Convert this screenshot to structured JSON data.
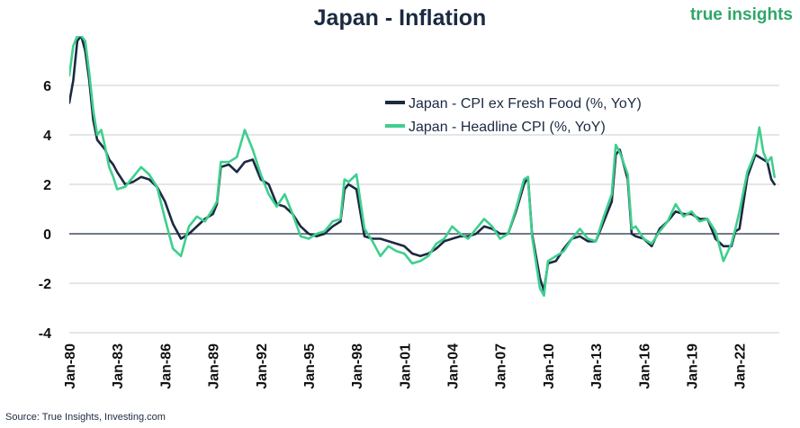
{
  "brand": {
    "name": "true insights",
    "color": "#2fa66a"
  },
  "source": "Source: True Insights, Investing.com",
  "chart_data": {
    "type": "line",
    "title": "Japan - Inflation",
    "xlabel": "",
    "ylabel": "",
    "ylim": [
      -4,
      8
    ],
    "xlim": [
      1980.0,
      2024.5
    ],
    "yticks": [
      -4,
      -2,
      0,
      2,
      4,
      6
    ],
    "xticks": [
      {
        "label": "Jan-80",
        "x": 1980
      },
      {
        "label": "Jan-83",
        "x": 1983
      },
      {
        "label": "Jan-86",
        "x": 1986
      },
      {
        "label": "Jan-89",
        "x": 1989
      },
      {
        "label": "Jan-92",
        "x": 1992
      },
      {
        "label": "Jan-95",
        "x": 1995
      },
      {
        "label": "Jan-98",
        "x": 1998
      },
      {
        "label": "Jan-01",
        "x": 2001
      },
      {
        "label": "Jan-04",
        "x": 2004
      },
      {
        "label": "Jan-07",
        "x": 2007
      },
      {
        "label": "Jan-10",
        "x": 2010
      },
      {
        "label": "Jan-13",
        "x": 2013
      },
      {
        "label": "Jan-16",
        "x": 2016
      },
      {
        "label": "Jan-19",
        "x": 2019
      },
      {
        "label": "Jan-22",
        "x": 2022
      }
    ],
    "grid": true,
    "legend_position": "top-right",
    "series": [
      {
        "name": "Japan - CPI ex Fresh Food (%, YoY)",
        "color": "#1b2a41",
        "x": [
          1980.0,
          1980.25,
          1980.5,
          1980.75,
          1981.0,
          1981.25,
          1981.5,
          1981.75,
          1982.0,
          1982.25,
          1982.5,
          1982.75,
          1983.0,
          1983.5,
          1984.0,
          1984.5,
          1985.0,
          1985.5,
          1986.0,
          1986.5,
          1987.0,
          1987.5,
          1988.0,
          1988.5,
          1989.0,
          1989.25,
          1989.5,
          1990.0,
          1990.5,
          1991.0,
          1991.5,
          1992.0,
          1992.5,
          1993.0,
          1993.5,
          1994.0,
          1994.5,
          1995.0,
          1995.5,
          1996.0,
          1996.5,
          1997.0,
          1997.25,
          1997.5,
          1998.0,
          1998.5,
          1999.0,
          1999.5,
          2000.0,
          2000.5,
          2001.0,
          2001.5,
          2002.0,
          2002.5,
          2003.0,
          2003.5,
          2004.0,
          2004.5,
          2005.0,
          2005.5,
          2006.0,
          2006.5,
          2007.0,
          2007.5,
          2008.0,
          2008.5,
          2008.75,
          2009.0,
          2009.5,
          2009.75,
          2010.0,
          2010.5,
          2011.0,
          2011.5,
          2012.0,
          2012.5,
          2013.0,
          2013.5,
          2014.0,
          2014.25,
          2014.5,
          2015.0,
          2015.25,
          2015.5,
          2016.0,
          2016.5,
          2017.0,
          2017.5,
          2018.0,
          2018.5,
          2019.0,
          2019.5,
          2020.0,
          2020.5,
          2021.0,
          2021.5,
          2021.75,
          2022.0,
          2022.5,
          2023.0,
          2023.25,
          2023.5,
          2023.75,
          2024.0,
          2024.2
        ],
        "values": [
          5.3,
          6.2,
          7.8,
          8.0,
          7.4,
          6.2,
          4.6,
          3.8,
          3.6,
          3.4,
          3.0,
          2.8,
          2.5,
          2.0,
          2.1,
          2.3,
          2.2,
          1.9,
          1.3,
          0.4,
          -0.2,
          0.0,
          0.3,
          0.6,
          0.8,
          1.2,
          2.7,
          2.8,
          2.5,
          2.9,
          3.0,
          2.2,
          2.0,
          1.2,
          1.1,
          0.8,
          0.3,
          0.0,
          -0.1,
          0.0,
          0.3,
          0.5,
          1.8,
          2.0,
          1.8,
          -0.1,
          -0.2,
          -0.2,
          -0.3,
          -0.4,
          -0.5,
          -0.8,
          -0.9,
          -0.8,
          -0.6,
          -0.3,
          -0.2,
          -0.1,
          -0.1,
          0.0,
          0.3,
          0.2,
          0.0,
          0.0,
          0.9,
          2.0,
          2.3,
          0.0,
          -1.8,
          -2.3,
          -1.2,
          -1.1,
          -0.6,
          -0.2,
          -0.1,
          -0.3,
          -0.3,
          0.5,
          1.3,
          3.2,
          3.4,
          2.2,
          0.0,
          -0.1,
          -0.2,
          -0.5,
          0.2,
          0.5,
          0.9,
          0.8,
          0.8,
          0.6,
          0.6,
          -0.2,
          -0.5,
          -0.5,
          0.1,
          0.2,
          2.3,
          3.2,
          3.1,
          3.0,
          2.9,
          2.2,
          2.0
        ]
      },
      {
        "name": "Japan - Headline CPI (%, YoY)",
        "color": "#3ecf8e",
        "x": [
          1980.0,
          1980.25,
          1980.5,
          1980.75,
          1981.0,
          1981.25,
          1981.5,
          1981.75,
          1982.0,
          1982.25,
          1982.5,
          1982.75,
          1983.0,
          1983.5,
          1984.0,
          1984.5,
          1985.0,
          1985.5,
          1986.0,
          1986.5,
          1987.0,
          1987.5,
          1988.0,
          1988.5,
          1989.0,
          1989.25,
          1989.5,
          1990.0,
          1990.5,
          1991.0,
          1991.5,
          1992.0,
          1992.5,
          1993.0,
          1993.5,
          1994.0,
          1994.5,
          1995.0,
          1995.5,
          1996.0,
          1996.5,
          1997.0,
          1997.25,
          1997.5,
          1998.0,
          1998.5,
          1999.0,
          1999.5,
          2000.0,
          2000.5,
          2001.0,
          2001.5,
          2002.0,
          2002.5,
          2003.0,
          2003.5,
          2004.0,
          2004.5,
          2005.0,
          2005.5,
          2006.0,
          2006.5,
          2007.0,
          2007.5,
          2008.0,
          2008.5,
          2008.75,
          2009.0,
          2009.5,
          2009.75,
          2010.0,
          2010.5,
          2011.0,
          2011.5,
          2012.0,
          2012.5,
          2013.0,
          2013.5,
          2014.0,
          2014.25,
          2014.5,
          2015.0,
          2015.25,
          2015.5,
          2016.0,
          2016.5,
          2017.0,
          2017.5,
          2018.0,
          2018.5,
          2019.0,
          2019.5,
          2020.0,
          2020.5,
          2021.0,
          2021.5,
          2021.75,
          2022.0,
          2022.5,
          2023.0,
          2023.25,
          2023.5,
          2023.75,
          2024.0,
          2024.2
        ],
        "values": [
          6.4,
          7.6,
          8.0,
          8.0,
          7.8,
          6.5,
          5.0,
          4.0,
          4.2,
          3.5,
          2.7,
          2.3,
          1.8,
          1.9,
          2.3,
          2.7,
          2.4,
          1.9,
          0.6,
          -0.6,
          -0.9,
          0.3,
          0.7,
          0.5,
          1.0,
          1.3,
          2.9,
          2.9,
          3.1,
          4.2,
          3.4,
          2.4,
          1.6,
          1.1,
          1.6,
          0.8,
          -0.1,
          -0.2,
          0.0,
          0.1,
          0.5,
          0.6,
          2.2,
          2.1,
          2.4,
          0.2,
          -0.3,
          -0.9,
          -0.5,
          -0.7,
          -0.8,
          -1.2,
          -1.1,
          -0.9,
          -0.4,
          -0.2,
          0.3,
          0.0,
          -0.2,
          0.2,
          0.6,
          0.3,
          -0.2,
          0.0,
          1.0,
          2.2,
          2.3,
          -0.1,
          -2.2,
          -2.5,
          -1.1,
          -0.9,
          -0.7,
          -0.2,
          0.2,
          -0.2,
          -0.3,
          0.7,
          1.6,
          3.6,
          3.3,
          2.4,
          0.2,
          0.3,
          -0.2,
          -0.4,
          0.1,
          0.5,
          1.2,
          0.7,
          0.9,
          0.5,
          0.6,
          0.1,
          -1.1,
          -0.4,
          0.2,
          0.9,
          2.5,
          3.3,
          4.3,
          3.3,
          2.9,
          3.1,
          2.3
        ]
      }
    ]
  }
}
